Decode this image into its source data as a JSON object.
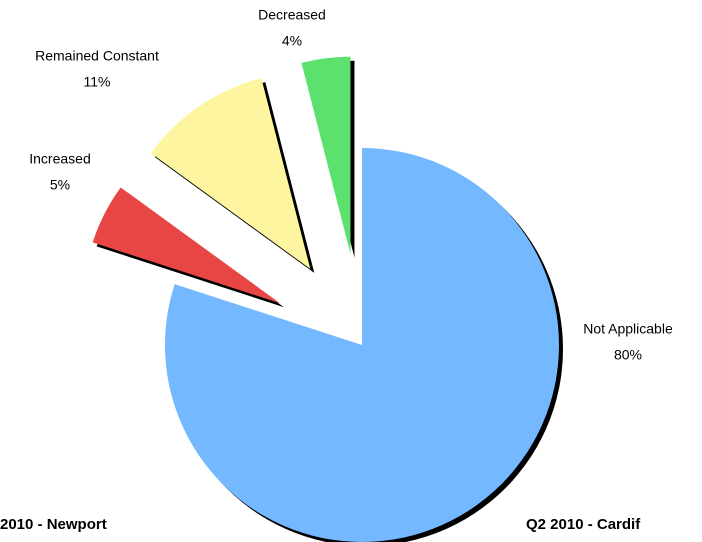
{
  "chart_data": {
    "type": "pie",
    "categories": [
      "Not Applicable",
      "Increased",
      "Remained Constant",
      "Decreased"
    ],
    "values": [
      80,
      5,
      11,
      4
    ],
    "value_labels": [
      "80%",
      "5%",
      "11%",
      "4%"
    ],
    "colors": [
      "#74b9ff",
      "#e84545",
      "#fdf5a0",
      "#5ce06e"
    ],
    "exploded": [
      false,
      true,
      true,
      true
    ],
    "annotations": [
      "2010 - Newport",
      "Q2 2010 - Cardif"
    ]
  }
}
